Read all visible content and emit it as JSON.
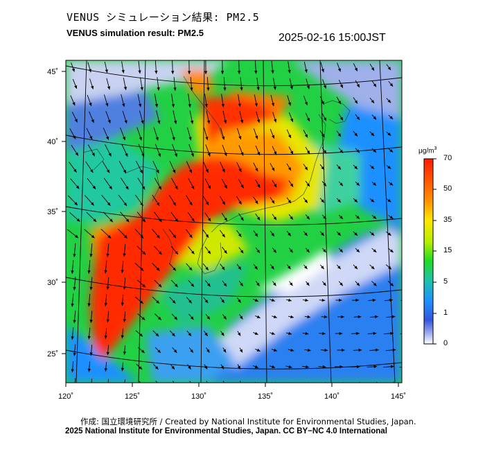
{
  "header": {
    "title_ja": "VENUS シミュレーション結果: PM2.5",
    "title_en": "VENUS simulation result: PM2.5",
    "timestamp": "2025-02-16 15:00JST"
  },
  "map": {
    "lon_labels": [
      "120˚",
      "125˚",
      "130˚",
      "135˚",
      "140˚",
      "145˚"
    ],
    "lat_labels": [
      "45˚",
      "40˚",
      "35˚",
      "30˚",
      "25˚"
    ],
    "lon_range": [
      120,
      145
    ],
    "lat_range": [
      23,
      46
    ],
    "pollutant": "PM2.5",
    "wind_vectors": true
  },
  "colorbar": {
    "unit_base": "μg/m",
    "unit_exp": "3",
    "tick_labels": [
      "70",
      "50",
      "35",
      "15",
      "5",
      "1",
      "0"
    ],
    "tick_values": [
      70,
      50,
      35,
      15,
      5,
      1,
      0
    ],
    "colors": [
      "#ff2a00",
      "#ff9900",
      "#ffee00",
      "#99ee00",
      "#22dd22",
      "#22bbaa",
      "#1e90ff",
      "#2255ee",
      "#8899ee",
      "#ffffff"
    ]
  },
  "footer": {
    "credit": "作成: 国立環境研究所 / Created by National Institute for Environmental Studies, Japan.",
    "license": "2025 National Institute for Environmental Studies, Japan. CC BY−NC 4.0 International"
  }
}
